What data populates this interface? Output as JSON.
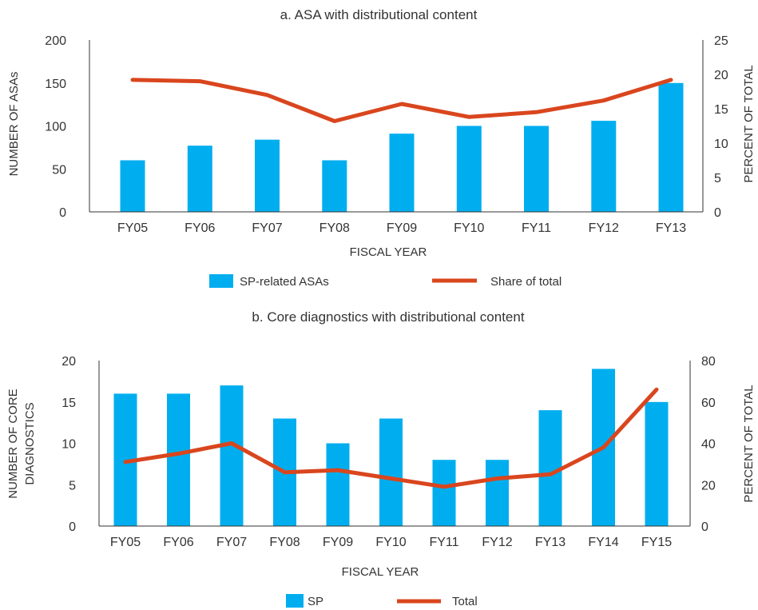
{
  "colors": {
    "bar": "#00AEEF",
    "line": "#D9461E",
    "axis": "#333333",
    "text": "#333333"
  },
  "chart_data": [
    {
      "type": "bar",
      "title": "a. ASA with distributional content",
      "xlabel": "FISCAL YEAR",
      "ylabel": "NUMBER OF ASAs",
      "ylabel_right": "PERCENT OF TOTAL",
      "categories": [
        "FY05",
        "FY06",
        "FY07",
        "FY08",
        "FY09",
        "FY10",
        "FY11",
        "FY12",
        "FY13"
      ],
      "ylim": [
        0,
        200
      ],
      "yticks": [
        0,
        50,
        100,
        150,
        200
      ],
      "ylim_right": [
        0,
        25
      ],
      "yticks_right": [
        0,
        5,
        10,
        15,
        20,
        25
      ],
      "grid": false,
      "legend_position": "bottom",
      "series": [
        {
          "name": "SP-related ASAs",
          "type": "bar",
          "axis": "left",
          "values": [
            60,
            77,
            84,
            60,
            91,
            100,
            100,
            106,
            150
          ]
        },
        {
          "name": "Share of total",
          "type": "line",
          "axis": "right",
          "values": [
            19.2,
            19.0,
            17.0,
            13.2,
            15.7,
            13.8,
            14.5,
            16.2,
            19.2
          ]
        }
      ]
    },
    {
      "type": "bar",
      "title": "b. Core diagnostics with distributional content",
      "xlabel": "FISCAL YEAR",
      "ylabel": [
        "NUMBER OF CORE",
        "DIAGNOSTICS"
      ],
      "ylabel_right": "PERCENT OF TOTAL",
      "categories": [
        "FY05",
        "FY06",
        "FY07",
        "FY08",
        "FY09",
        "FY10",
        "FY11",
        "FY12",
        "FY13",
        "FY14",
        "FY15"
      ],
      "ylim": [
        0,
        20
      ],
      "yticks": [
        0,
        5,
        10,
        15,
        20
      ],
      "ylim_right": [
        0,
        80
      ],
      "yticks_right": [
        0,
        20,
        40,
        60,
        80
      ],
      "grid": false,
      "legend_position": "bottom",
      "series": [
        {
          "name": "SP",
          "type": "bar",
          "axis": "left",
          "values": [
            16,
            16,
            17,
            13,
            10,
            13,
            8,
            8,
            14,
            19,
            15
          ]
        },
        {
          "name": "Total",
          "type": "line",
          "axis": "right",
          "values": [
            31,
            35,
            40,
            26,
            27,
            23,
            19,
            23,
            25,
            38,
            66
          ]
        }
      ]
    }
  ]
}
